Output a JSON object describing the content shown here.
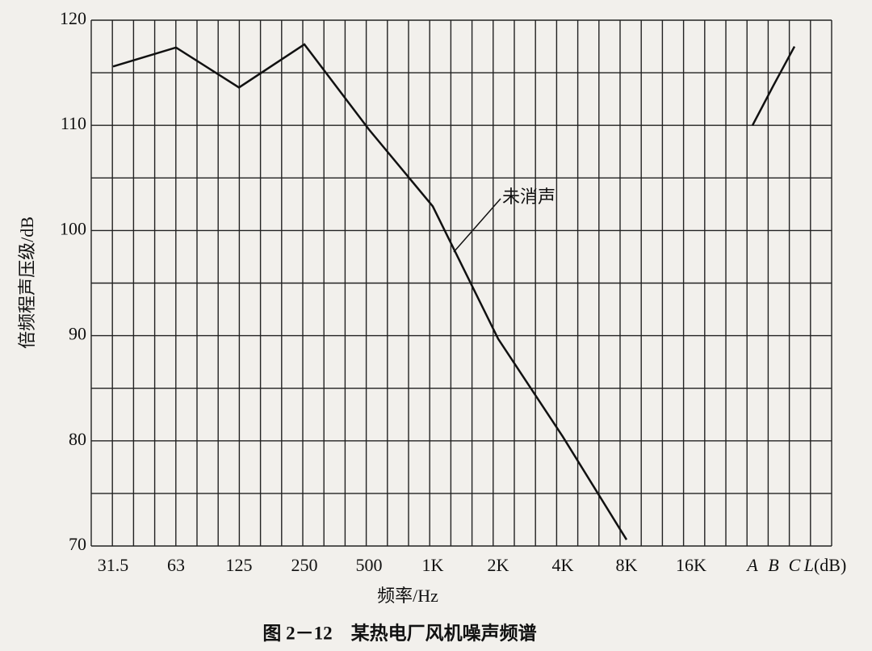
{
  "chart_data": {
    "type": "line",
    "title": "图 2－12　某热电厂风机噪声频谱",
    "x_label": "频率/Hz",
    "y_label": "倍频程声压级/dB",
    "categories": [
      "31.5",
      "63",
      "125",
      "250",
      "500",
      "1K",
      "2K",
      "4K",
      "8K",
      "16K",
      "A",
      "B",
      "C",
      "L(dB)"
    ],
    "series": [
      {
        "name": "未消声",
        "color": "#111111",
        "values": [
          115.6,
          117.4,
          113.6,
          117.7,
          109.6,
          102.3,
          89.7,
          80.4,
          70.6,
          null,
          110,
          113.8,
          117.5,
          null
        ]
      }
    ],
    "ylim": [
      70,
      120
    ],
    "yticks": [
      70,
      80,
      90,
      100,
      110,
      120
    ],
    "minor_yticks": [
      75,
      85,
      95,
      105,
      115
    ],
    "grid": true
  }
}
